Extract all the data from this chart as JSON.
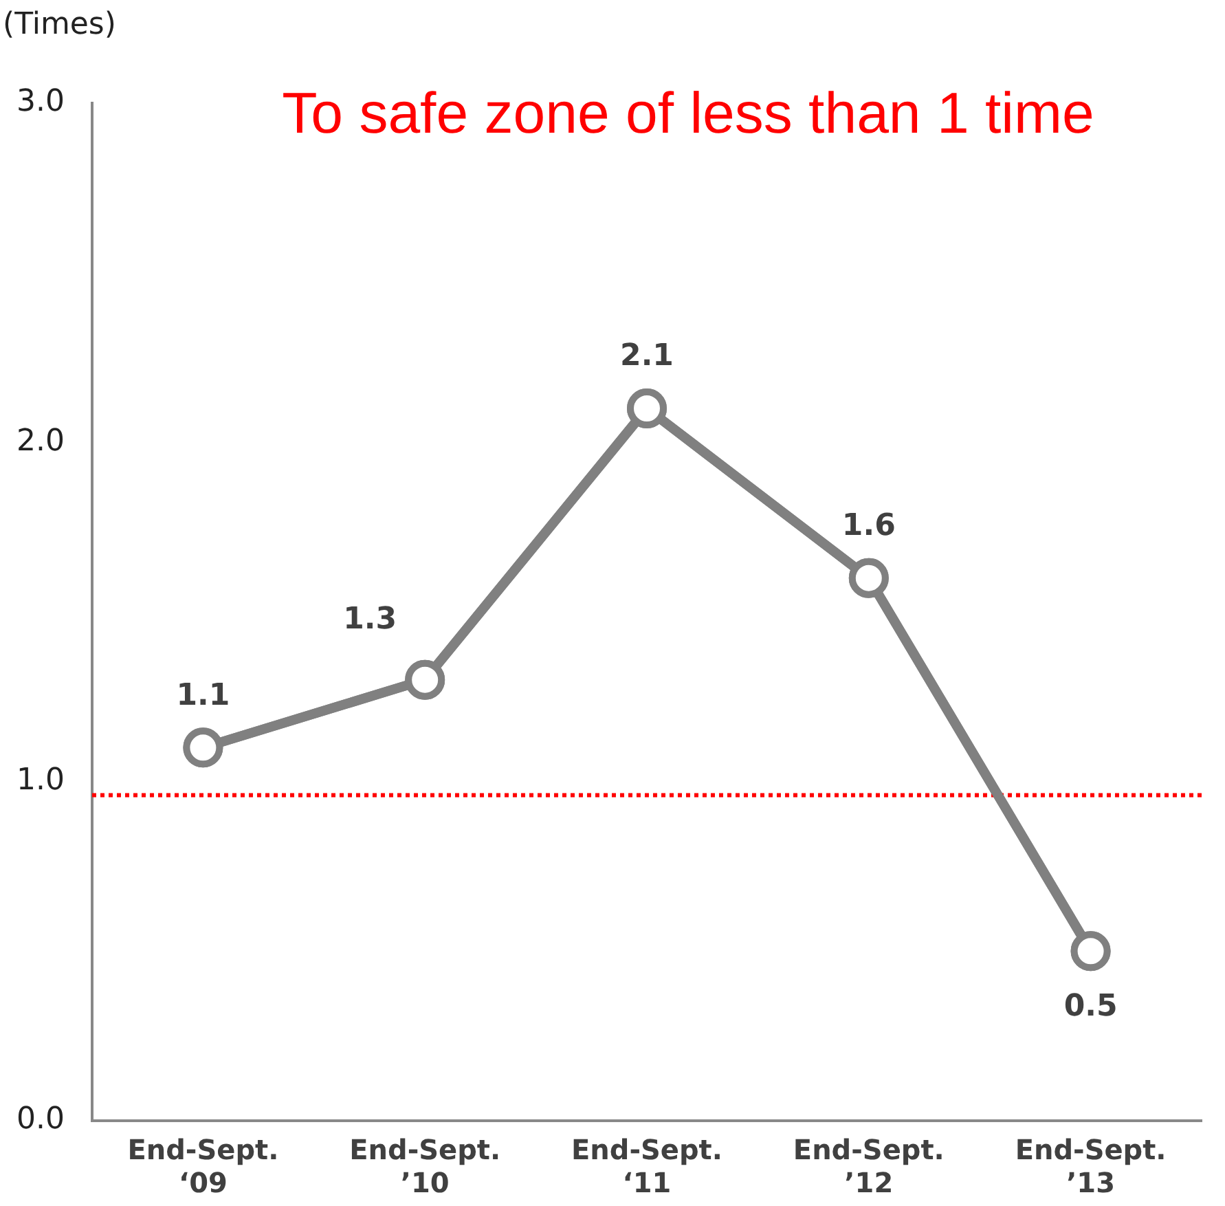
{
  "chart_data": {
    "type": "line",
    "ylabel": "(Times)",
    "annotations": [
      "To safe zone of less than 1 time"
    ],
    "categories": [
      "End-Sept.\n‘09",
      "End-Sept.\n’10",
      "End-Sept.\n‘11",
      "End-Sept.\n’12",
      "End-Sept.\n’13"
    ],
    "series": [
      {
        "color": "#808080",
        "values": [
          1.1,
          1.3,
          2.1,
          1.6,
          0.5
        ]
      }
    ],
    "ylim": [
      0,
      3
    ],
    "yticks": [
      {
        "value": 0,
        "label": "0.0"
      },
      {
        "value": 1,
        "label": "1.0"
      },
      {
        "value": 2,
        "label": "2.0"
      },
      {
        "value": 3,
        "label": "3.0"
      }
    ],
    "ref_lines": [
      {
        "axis": "y",
        "value": 0.96,
        "color": "#ff0000",
        "line_style": "dotted"
      }
    ],
    "grid": false,
    "legend": false,
    "marker": "circle",
    "line_style": "solid",
    "data_labels": true
  }
}
